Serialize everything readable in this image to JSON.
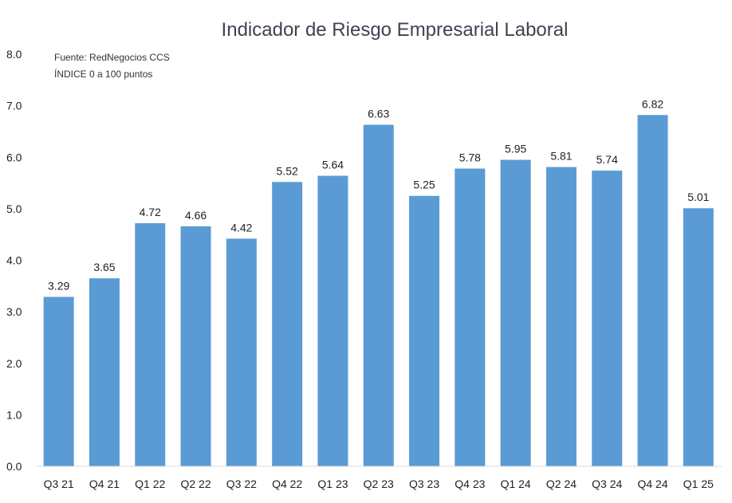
{
  "chart_data": {
    "type": "bar",
    "title": "Indicador de Riesgo Empresarial Laboral",
    "annotations": [
      "Fuente: RedNegocios CCS",
      "ÍNDICE 0 a 100  puntos"
    ],
    "xlabel": "",
    "ylabel": "",
    "ylim": [
      0,
      8
    ],
    "yticks": [
      "0.0",
      "1.0",
      "2.0",
      "3.0",
      "4.0",
      "5.0",
      "6.0",
      "7.0",
      "8.0"
    ],
    "grid": false,
    "bar_color": "#5b9bd5",
    "categories": [
      "Q3 21",
      "Q4 21",
      "Q1 22",
      "Q2 22",
      "Q3 22",
      "Q4 22",
      "Q1 23",
      "Q2 23",
      "Q3 23",
      "Q4 23",
      "Q1 24",
      "Q2 24",
      "Q3 24",
      "Q4 24",
      "Q1 25"
    ],
    "values": [
      3.29,
      3.65,
      4.72,
      4.66,
      4.42,
      5.52,
      5.64,
      6.63,
      5.25,
      5.78,
      5.95,
      5.81,
      5.74,
      6.82,
      5.01
    ],
    "data_labels": [
      "3.29",
      "3.65",
      "4.72",
      "4.66",
      "4.42",
      "5.52",
      "5.64",
      "6.63",
      "5.25",
      "5.78",
      "5.95",
      "5.81",
      "5.74",
      "6.82",
      "5.01"
    ]
  }
}
